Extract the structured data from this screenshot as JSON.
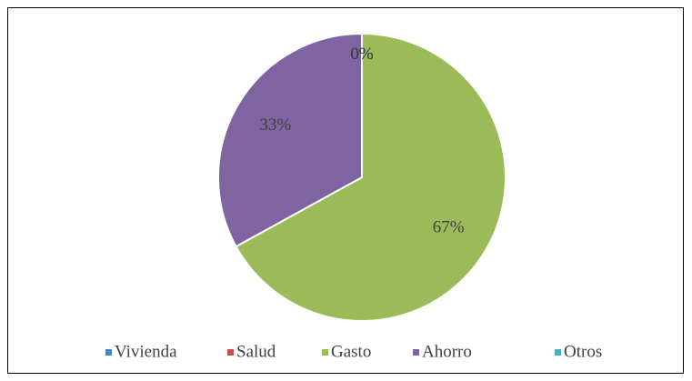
{
  "chart_data": {
    "type": "pie",
    "categories": [
      "Vivienda",
      "Salud",
      "Gasto",
      "Ahorro",
      "Otros"
    ],
    "values": [
      0,
      0,
      67,
      33,
      0
    ],
    "value_labels": [
      "0%",
      "0%",
      "67%",
      "33%",
      "0%"
    ],
    "colors": [
      "#4f81bd",
      "#c0504d",
      "#9bbb59",
      "#8064a2",
      "#4bacc6"
    ],
    "legend": "bottom"
  }
}
